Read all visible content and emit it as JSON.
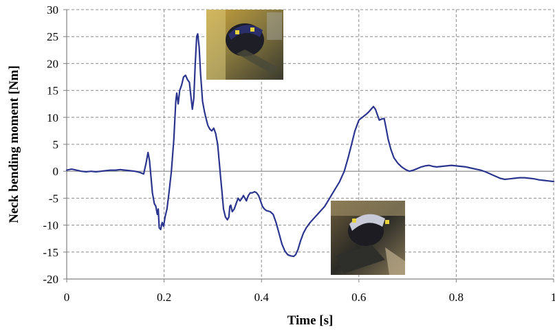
{
  "chart_data": {
    "type": "line",
    "title": "",
    "xlabel": "Time [s]",
    "ylabel": "Neck bending moment [Nm]",
    "xlim": [
      0,
      1
    ],
    "ylim": [
      -20,
      30
    ],
    "x_ticks": [
      0,
      0.2,
      0.4,
      0.6,
      0.8,
      1
    ],
    "y_ticks": [
      -20,
      -15,
      -10,
      -5,
      0,
      5,
      10,
      15,
      20,
      25,
      30
    ],
    "grid": true,
    "legend": "none",
    "line_color": "#2b3590",
    "series": [
      {
        "name": "",
        "points": [
          [
            0.0,
            0.2
          ],
          [
            0.01,
            0.4
          ],
          [
            0.02,
            0.2
          ],
          [
            0.03,
            0.0
          ],
          [
            0.04,
            -0.1
          ],
          [
            0.05,
            0.0
          ],
          [
            0.06,
            -0.1
          ],
          [
            0.07,
            0.0
          ],
          [
            0.08,
            0.1
          ],
          [
            0.09,
            0.2
          ],
          [
            0.1,
            0.2
          ],
          [
            0.11,
            0.3
          ],
          [
            0.12,
            0.2
          ],
          [
            0.13,
            0.1
          ],
          [
            0.14,
            0.0
          ],
          [
            0.15,
            -0.2
          ],
          [
            0.158,
            -0.5
          ],
          [
            0.163,
            1.5
          ],
          [
            0.167,
            3.5
          ],
          [
            0.17,
            2.0
          ],
          [
            0.173,
            -1.0
          ],
          [
            0.176,
            -4.0
          ],
          [
            0.18,
            -6.0
          ],
          [
            0.183,
            -6.5
          ],
          [
            0.186,
            -8.0
          ],
          [
            0.188,
            -7.0
          ],
          [
            0.19,
            -10.5
          ],
          [
            0.193,
            -10.8
          ],
          [
            0.196,
            -9.5
          ],
          [
            0.199,
            -10.2
          ],
          [
            0.202,
            -8.5
          ],
          [
            0.206,
            -7.0
          ],
          [
            0.21,
            -4.0
          ],
          [
            0.215,
            0.0
          ],
          [
            0.22,
            6.0
          ],
          [
            0.224,
            13.0
          ],
          [
            0.226,
            14.5
          ],
          [
            0.229,
            12.5
          ],
          [
            0.232,
            15.0
          ],
          [
            0.236,
            16.0
          ],
          [
            0.24,
            17.5
          ],
          [
            0.244,
            17.8
          ],
          [
            0.248,
            17.0
          ],
          [
            0.252,
            16.5
          ],
          [
            0.255,
            14.0
          ],
          [
            0.258,
            11.5
          ],
          [
            0.261,
            13.5
          ],
          [
            0.264,
            20.0
          ],
          [
            0.267,
            25.0
          ],
          [
            0.269,
            25.5
          ],
          [
            0.272,
            23.0
          ],
          [
            0.275,
            18.0
          ],
          [
            0.279,
            13.0
          ],
          [
            0.283,
            11.0
          ],
          [
            0.287,
            9.5
          ],
          [
            0.29,
            8.5
          ],
          [
            0.294,
            7.8
          ],
          [
            0.298,
            7.5
          ],
          [
            0.302,
            8.0
          ],
          [
            0.306,
            7.0
          ],
          [
            0.31,
            5.0
          ],
          [
            0.313,
            2.0
          ],
          [
            0.316,
            -1.0
          ],
          [
            0.319,
            -4.0
          ],
          [
            0.322,
            -7.0
          ],
          [
            0.326,
            -8.5
          ],
          [
            0.33,
            -9.0
          ],
          [
            0.333,
            -8.5
          ],
          [
            0.335,
            -6.5
          ],
          [
            0.337,
            -6.3
          ],
          [
            0.34,
            -7.5
          ],
          [
            0.344,
            -7.0
          ],
          [
            0.348,
            -6.0
          ],
          [
            0.352,
            -5.0
          ],
          [
            0.356,
            -5.5
          ],
          [
            0.36,
            -5.0
          ],
          [
            0.363,
            -4.5
          ],
          [
            0.366,
            -5.0
          ],
          [
            0.369,
            -5.5
          ],
          [
            0.373,
            -4.5
          ],
          [
            0.377,
            -4.0
          ],
          [
            0.381,
            -4.0
          ],
          [
            0.386,
            -3.8
          ],
          [
            0.39,
            -4.0
          ],
          [
            0.394,
            -4.5
          ],
          [
            0.398,
            -5.5
          ],
          [
            0.402,
            -6.5
          ],
          [
            0.406,
            -7.0
          ],
          [
            0.41,
            -7.3
          ],
          [
            0.418,
            -7.5
          ],
          [
            0.424,
            -8.0
          ],
          [
            0.43,
            -9.5
          ],
          [
            0.436,
            -11.5
          ],
          [
            0.442,
            -13.5
          ],
          [
            0.448,
            -14.8
          ],
          [
            0.454,
            -15.5
          ],
          [
            0.46,
            -15.7
          ],
          [
            0.466,
            -15.8
          ],
          [
            0.47,
            -15.5
          ],
          [
            0.475,
            -14.5
          ],
          [
            0.48,
            -13.0
          ],
          [
            0.486,
            -11.5
          ],
          [
            0.492,
            -10.5
          ],
          [
            0.5,
            -9.5
          ],
          [
            0.51,
            -8.5
          ],
          [
            0.52,
            -7.5
          ],
          [
            0.53,
            -6.5
          ],
          [
            0.54,
            -5.0
          ],
          [
            0.55,
            -3.5
          ],
          [
            0.56,
            -2.0
          ],
          [
            0.57,
            0.0
          ],
          [
            0.578,
            2.5
          ],
          [
            0.585,
            5.0
          ],
          [
            0.592,
            7.5
          ],
          [
            0.6,
            9.5
          ],
          [
            0.607,
            10.0
          ],
          [
            0.614,
            10.5
          ],
          [
            0.62,
            11.0
          ],
          [
            0.625,
            11.5
          ],
          [
            0.63,
            12.0
          ],
          [
            0.634,
            11.5
          ],
          [
            0.638,
            10.5
          ],
          [
            0.642,
            9.5
          ],
          [
            0.647,
            9.7
          ],
          [
            0.652,
            9.8
          ],
          [
            0.656,
            8.0
          ],
          [
            0.66,
            6.0
          ],
          [
            0.666,
            4.0
          ],
          [
            0.672,
            2.5
          ],
          [
            0.68,
            1.5
          ],
          [
            0.688,
            0.8
          ],
          [
            0.696,
            0.3
          ],
          [
            0.704,
            0.0
          ],
          [
            0.712,
            0.2
          ],
          [
            0.72,
            0.5
          ],
          [
            0.728,
            0.8
          ],
          [
            0.736,
            1.0
          ],
          [
            0.744,
            1.1
          ],
          [
            0.752,
            0.9
          ],
          [
            0.76,
            0.8
          ],
          [
            0.77,
            0.9
          ],
          [
            0.78,
            1.0
          ],
          [
            0.79,
            1.1
          ],
          [
            0.8,
            1.0
          ],
          [
            0.81,
            0.9
          ],
          [
            0.82,
            0.8
          ],
          [
            0.83,
            0.6
          ],
          [
            0.84,
            0.4
          ],
          [
            0.85,
            0.2
          ],
          [
            0.86,
            -0.1
          ],
          [
            0.87,
            -0.5
          ],
          [
            0.88,
            -0.9
          ],
          [
            0.89,
            -1.3
          ],
          [
            0.9,
            -1.5
          ],
          [
            0.91,
            -1.4
          ],
          [
            0.92,
            -1.3
          ],
          [
            0.93,
            -1.2
          ],
          [
            0.94,
            -1.2
          ],
          [
            0.95,
            -1.3
          ],
          [
            0.96,
            -1.4
          ],
          [
            0.97,
            -1.6
          ],
          [
            0.98,
            -1.7
          ],
          [
            0.99,
            -1.8
          ],
          [
            1.0,
            -1.9
          ]
        ]
      }
    ],
    "insets": [
      {
        "name": "inset-photo-upper",
        "depicts": "video frame of crash test dummy head with helmet at peak positive moment"
      },
      {
        "name": "inset-photo-lower",
        "depicts": "video frame of crash test dummy head with helmet at peak negative moment"
      }
    ]
  }
}
